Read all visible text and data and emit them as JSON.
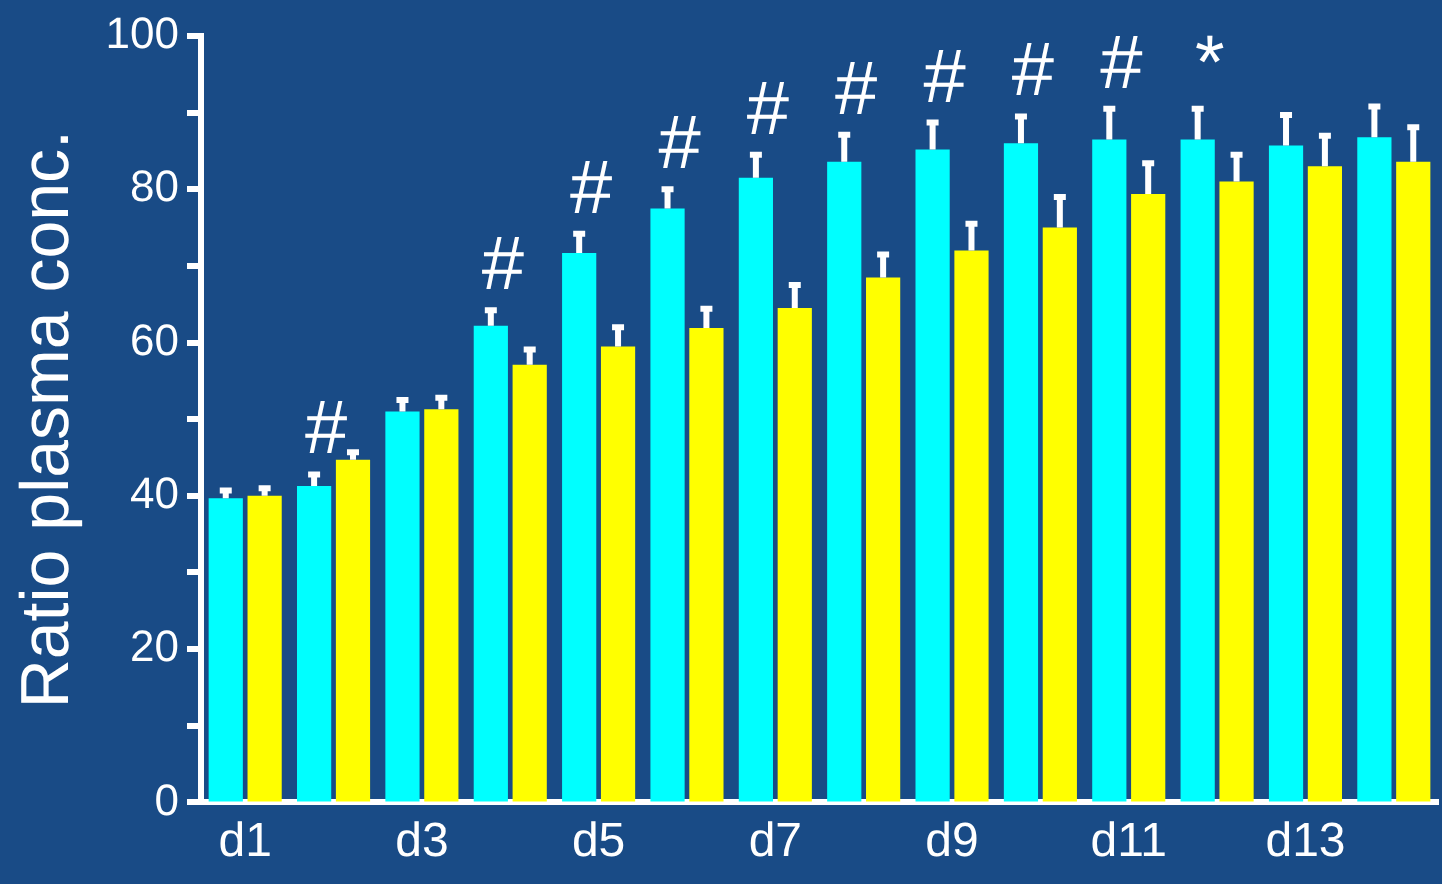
{
  "chart_data": {
    "type": "bar",
    "ylabel": "Ratio plasma conc.",
    "categories": [
      "d1",
      null,
      "d3",
      null,
      "d5",
      null,
      "d7",
      null,
      "d9",
      null,
      "d11",
      null,
      "d13",
      null
    ],
    "series": [
      {
        "color": "#00ffff",
        "values": [
          39.7,
          41.3,
          51,
          62.2,
          71.7,
          77.5,
          81.5,
          83.6,
          85.2,
          86,
          86.5,
          86.5,
          85.7,
          86.8
        ],
        "errors": [
          [
            39.7,
            40.7
          ],
          [
            41.3,
            42.8
          ],
          [
            51,
            52.5
          ],
          [
            62.2,
            64.2
          ],
          [
            71.7,
            74.2
          ],
          [
            77.5,
            80
          ],
          [
            81.5,
            84.5
          ],
          [
            83.6,
            87.1
          ],
          [
            85.2,
            88.7
          ],
          [
            86,
            89.5
          ],
          [
            86.5,
            90.5
          ],
          [
            86.5,
            90.5
          ],
          [
            85.7,
            89.7
          ],
          [
            86.8,
            90.8
          ]
        ],
        "value_labels": [
          null,
          "#",
          null,
          "#",
          "#",
          "#",
          "#",
          "#",
          "#",
          "#",
          "#",
          "*",
          null,
          null
        ]
      },
      {
        "color": "#ffff00",
        "values": [
          40,
          44.7,
          51.3,
          57.1,
          59.5,
          61.9,
          64.5,
          68.5,
          72,
          75,
          79.4,
          81,
          83,
          83.6
        ],
        "errors": [
          [
            40,
            41
          ],
          [
            44.7,
            45.7
          ],
          [
            51.3,
            52.8
          ],
          [
            57.1,
            59.1
          ],
          [
            59.5,
            62
          ],
          [
            61.9,
            64.4
          ],
          [
            64.5,
            67.5
          ],
          [
            68.5,
            71.5
          ],
          [
            72,
            75.5
          ],
          [
            75,
            79
          ],
          [
            79.4,
            83.4
          ],
          [
            81,
            84.5
          ],
          [
            83,
            87
          ],
          [
            83.6,
            88.1
          ]
        ]
      }
    ],
    "ylim": [
      0,
      100
    ],
    "yticks": [
      0,
      {
        "value": 10,
        "label": null
      },
      20,
      {
        "value": 30,
        "label": null
      },
      40,
      {
        "value": 50,
        "label": null
      },
      60,
      {
        "value": 70,
        "label": null
      },
      80,
      {
        "value": 90,
        "label": null
      },
      100
    ],
    "grid": false,
    "legend": false
  }
}
